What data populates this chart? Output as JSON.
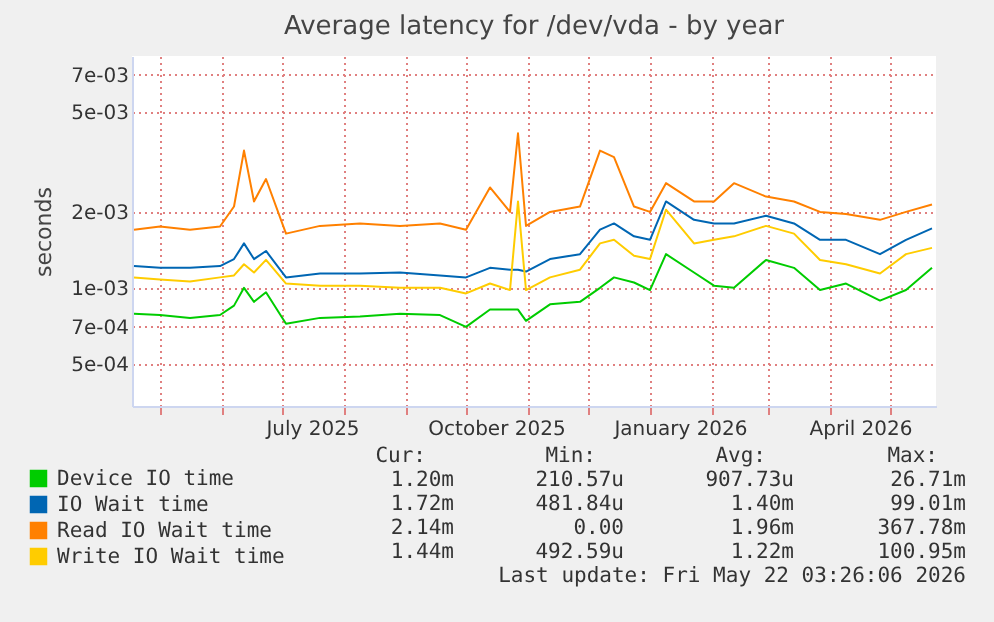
{
  "chart_data": {
    "type": "line",
    "title": "Average latency for /dev/vda - by year",
    "ylabel": "seconds",
    "x": [
      "2025-04-18",
      "2025-05-01",
      "2025-05-16",
      "2025-05-31",
      "2025-06-07",
      "2025-06-12",
      "2025-06-17",
      "2025-06-23",
      "2025-07-03",
      "2025-07-20",
      "2025-08-09",
      "2025-08-29",
      "2025-09-18",
      "2025-10-01",
      "2025-10-13",
      "2025-10-23",
      "2025-10-27",
      "2025-10-31",
      "2025-11-12",
      "2025-11-27",
      "2025-12-07",
      "2025-12-14",
      "2025-12-24",
      "2026-01-01",
      "2026-01-09",
      "2026-01-23",
      "2026-02-02",
      "2026-02-12",
      "2026-02-28",
      "2026-03-14",
      "2026-03-27",
      "2026-04-09",
      "2026-04-26",
      "2026-05-09",
      "2026-05-22"
    ],
    "series": [
      {
        "name": "Device IO time",
        "color": "#00cc00",
        "values": [
          0.00079,
          0.00078,
          0.00076,
          0.00078,
          0.00085,
          0.001,
          0.00088,
          0.00096,
          0.00072,
          0.00076,
          0.00077,
          0.00079,
          0.00078,
          0.0007,
          0.00082,
          0.00082,
          0.00082,
          0.00074,
          0.00086,
          0.00088,
          0.001,
          0.0011,
          0.00105,
          0.00098,
          0.00136,
          0.00115,
          0.00102,
          0.001,
          0.00129,
          0.0012,
          0.00098,
          0.00104,
          0.00089,
          0.00098,
          0.0012
        ]
      },
      {
        "name": "IO Wait time",
        "color": "#0066b3",
        "values": [
          0.00122,
          0.0012,
          0.0012,
          0.00122,
          0.0013,
          0.0015,
          0.0013,
          0.0014,
          0.0011,
          0.00114,
          0.00114,
          0.00115,
          0.00112,
          0.0011,
          0.0012,
          0.00118,
          0.00118,
          0.00116,
          0.0013,
          0.00136,
          0.0017,
          0.0018,
          0.0016,
          0.00155,
          0.0022,
          0.00186,
          0.0018,
          0.0018,
          0.00193,
          0.0018,
          0.00155,
          0.00155,
          0.00136,
          0.00155,
          0.00172
        ]
      },
      {
        "name": "Read IO Wait time",
        "color": "#ff8000",
        "values": [
          0.0017,
          0.00175,
          0.0017,
          0.00175,
          0.0021,
          0.0035,
          0.0022,
          0.0027,
          0.00164,
          0.00176,
          0.0018,
          0.00176,
          0.0018,
          0.0017,
          0.0025,
          0.002,
          0.0041,
          0.00176,
          0.002,
          0.0021,
          0.0035,
          0.0033,
          0.0021,
          0.002,
          0.0026,
          0.0022,
          0.0022,
          0.0026,
          0.0023,
          0.0022,
          0.002,
          0.00196,
          0.00186,
          0.002,
          0.00214
        ]
      },
      {
        "name": "Write IO Wait time",
        "color": "#ffcc00",
        "values": [
          0.0011,
          0.00108,
          0.00106,
          0.0011,
          0.00112,
          0.00124,
          0.00115,
          0.00129,
          0.00104,
          0.00102,
          0.00102,
          0.001,
          0.001,
          0.00095,
          0.00104,
          0.00098,
          0.0022,
          0.00098,
          0.0011,
          0.00118,
          0.0015,
          0.00155,
          0.00134,
          0.0013,
          0.00204,
          0.0015,
          0.00155,
          0.0016,
          0.00176,
          0.00164,
          0.00129,
          0.00124,
          0.00114,
          0.00136,
          0.00144
        ]
      }
    ],
    "log": "y",
    "ylim": [
      0.00034,
      0.0083
    ],
    "yticks": [
      {
        "value": 0.0005,
        "label": "5e-04"
      },
      {
        "value": 0.0007,
        "label": "7e-04"
      },
      {
        "value": 0.001,
        "label": "1e-03"
      },
      {
        "value": 0.002,
        "label": "2e-03"
      },
      {
        "value": 0.005,
        "label": "5e-03"
      },
      {
        "value": 0.007,
        "label": "7e-03"
      }
    ],
    "xlim": [
      "2025-04-17",
      "2026-05-24"
    ],
    "xticks": [
      {
        "value": "2025-05-01",
        "label": null
      },
      {
        "value": "2025-06-01",
        "label": null
      },
      {
        "value": "2025-07-01",
        "label": null
      },
      {
        "value": "2025-07-16",
        "label": "July 2025"
      },
      {
        "value": "2025-08-01",
        "label": null
      },
      {
        "value": "2025-09-01",
        "label": null
      },
      {
        "value": "2025-10-01",
        "label": null
      },
      {
        "value": "2025-10-16",
        "label": "October 2025"
      },
      {
        "value": "2025-11-01",
        "label": null
      },
      {
        "value": "2025-12-01",
        "label": null
      },
      {
        "value": "2026-01-01",
        "label": null
      },
      {
        "value": "2026-01-16",
        "label": "January 2026"
      },
      {
        "value": "2026-02-01",
        "label": null
      },
      {
        "value": "2026-03-01",
        "label": null
      },
      {
        "value": "2026-04-01",
        "label": null
      },
      {
        "value": "2026-04-16",
        "label": "April 2026"
      },
      {
        "value": "2026-05-01",
        "label": null
      }
    ],
    "grid": true,
    "legend": "bottom left",
    "line_style": "solid",
    "marker": "none",
    "annotations": [
      "Cur:",
      "Min:",
      "Avg:",
      "Max:",
      "1.20m",
      "210.57u",
      "907.73u",
      "26.71m",
      "1.72m",
      "481.84u",
      "1.40m",
      "99.01m",
      "2.14m",
      "0.00",
      "1.96m",
      "367.78m",
      "1.44m",
      "492.59u",
      "1.22m",
      "100.95m",
      "Last update: Fri May 22 03:26:06 2026"
    ]
  }
}
